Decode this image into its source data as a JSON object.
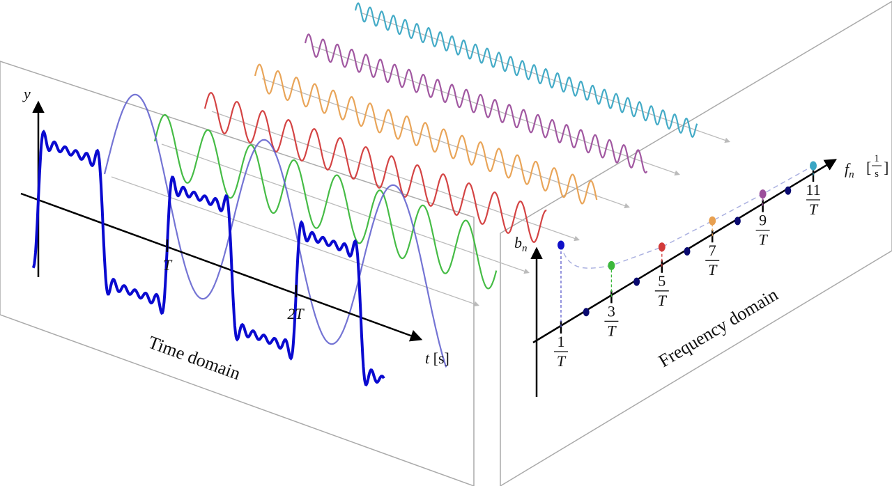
{
  "time_panel": {
    "y_axis_label": "y",
    "t_axis_label": "t",
    "t_axis_unit": "[s]",
    "ticks": [
      "T",
      "2T"
    ],
    "caption": "Time domain"
  },
  "frequency_panel": {
    "y_axis_label": "b",
    "y_axis_subscript": "n",
    "f_axis_label": "f",
    "f_axis_subscript": "n",
    "f_unit_numerator": "1",
    "f_unit_denominator": "s",
    "ticks": [
      {
        "numerator": "1",
        "denominator": "T"
      },
      {
        "numerator": "3",
        "denominator": "T"
      },
      {
        "numerator": "5",
        "denominator": "T"
      },
      {
        "numerator": "7",
        "denominator": "T"
      },
      {
        "numerator": "9",
        "denominator": "T"
      },
      {
        "numerator": "11",
        "denominator": "T"
      }
    ],
    "caption": "Frequency domain"
  }
}
